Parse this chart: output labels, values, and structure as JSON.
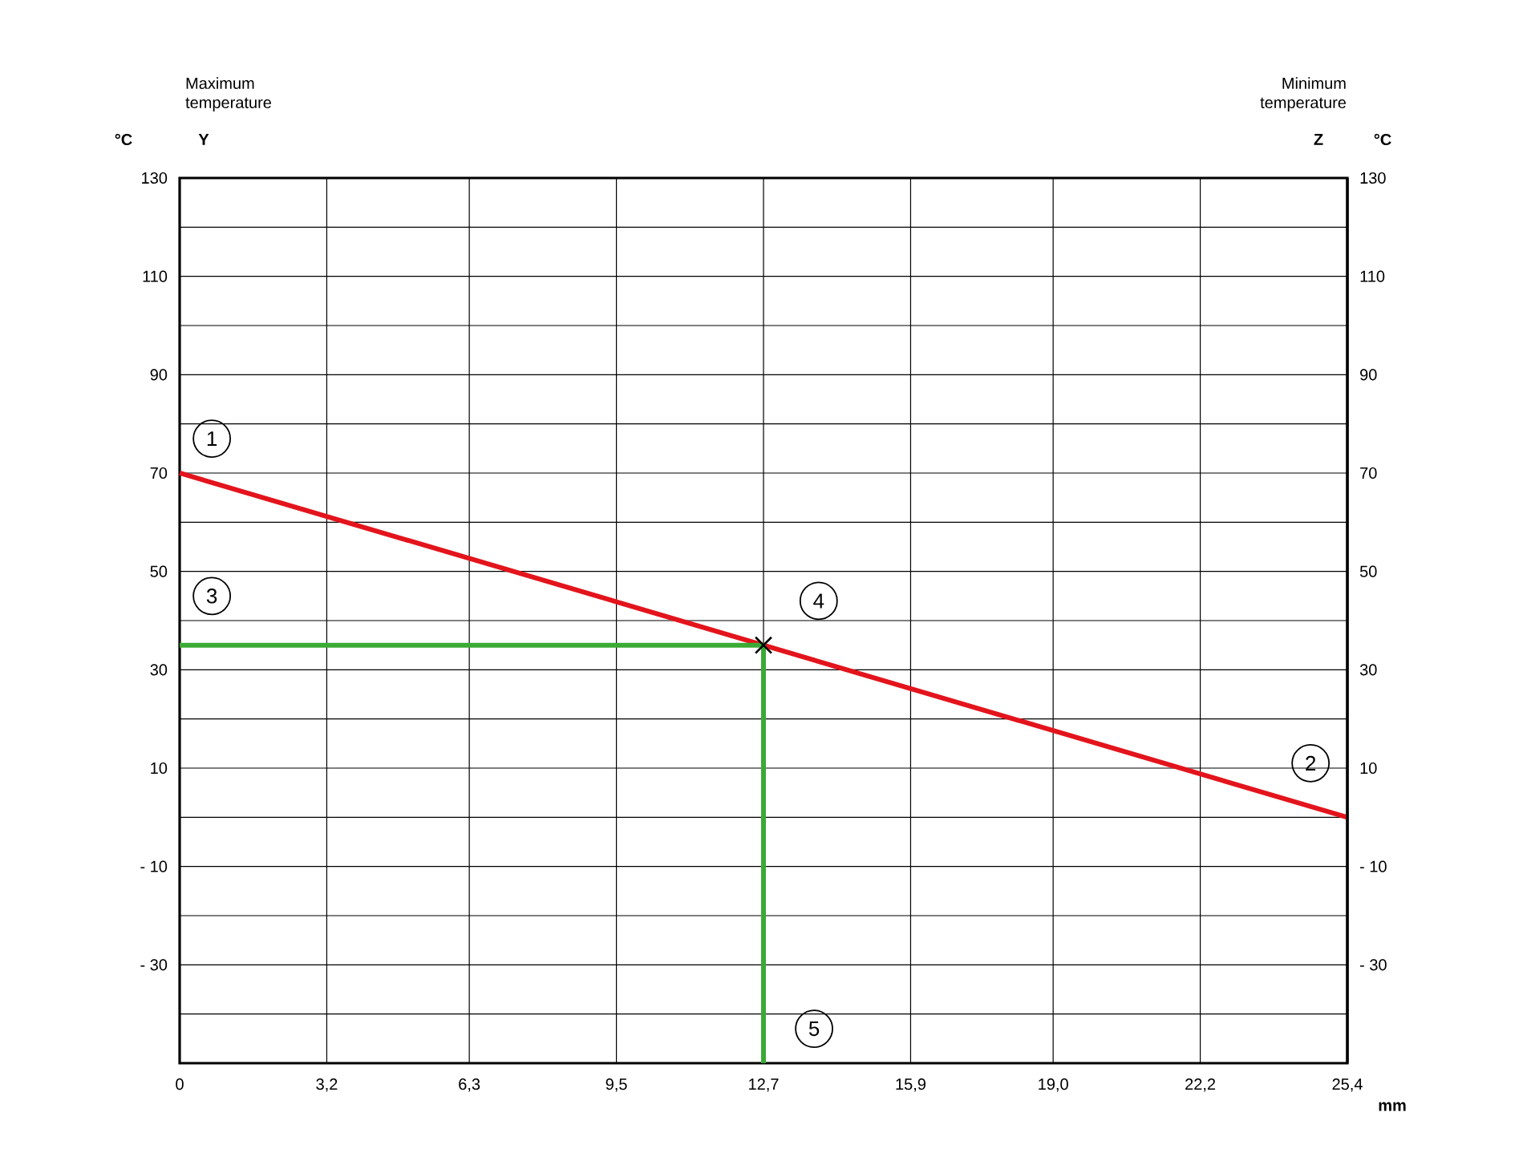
{
  "chart_data": {
    "type": "line",
    "xlabel": "mm",
    "ylabel": "°C",
    "y2label": "°C",
    "xlim": [
      0,
      25.4
    ],
    "ylim": [
      -50,
      130
    ],
    "y2lim": [
      -50,
      130
    ],
    "xticks": [
      0,
      {
        "value": 3.2,
        "label": "3,2"
      },
      {
        "value": 6.3,
        "label": "6,3"
      },
      {
        "value": 9.5,
        "label": "9,5"
      },
      {
        "value": 12.7,
        "label": "12,7"
      },
      {
        "value": 15.9,
        "label": "15,9"
      },
      {
        "value": 19.0,
        "label": "19,0"
      },
      {
        "value": 22.2,
        "label": "22,2"
      },
      {
        "value": 25.4,
        "label": "25,4"
      }
    ],
    "yticks": [
      {
        "value": -50,
        "label": null
      },
      {
        "value": -40,
        "label": null
      },
      {
        "value": -30,
        "label": "- 30"
      },
      {
        "value": -20,
        "label": null
      },
      {
        "value": -10,
        "label": "- 10"
      },
      {
        "value": 0,
        "label": null
      },
      10,
      {
        "value": 20,
        "label": null
      },
      30,
      {
        "value": 40,
        "label": null
      },
      50,
      {
        "value": 60,
        "label": null
      },
      70,
      {
        "value": 80,
        "label": null
      },
      90,
      {
        "value": 100,
        "label": null
      },
      110,
      {
        "value": 120,
        "label": null
      },
      130
    ],
    "y2ticks": [
      {
        "value": -50,
        "label": null
      },
      {
        "value": -40,
        "label": null
      },
      {
        "value": -30,
        "label": "- 30"
      },
      {
        "value": -20,
        "label": null
      },
      {
        "value": -10,
        "label": "- 10"
      },
      {
        "value": 0,
        "label": null
      },
      10,
      {
        "value": 20,
        "label": null
      },
      30,
      {
        "value": 40,
        "label": null
      },
      50,
      {
        "value": 60,
        "label": null
      },
      70,
      {
        "value": 80,
        "label": null
      },
      90,
      {
        "value": 100,
        "label": null
      },
      110,
      {
        "value": 120,
        "label": null
      },
      130
    ],
    "grid": true,
    "series": [
      {
        "color": "#e3141c",
        "x": [
          0,
          25.4
        ],
        "values": [
          70,
          0
        ]
      },
      {
        "color": "#3aaa35",
        "x": [
          0,
          12.7,
          12.7
        ],
        "values": [
          35,
          35,
          -50
        ]
      },
      {
        "type": "scatter",
        "marker": "cross",
        "color": "#000000",
        "x": [
          12.7
        ],
        "values": [
          35
        ]
      }
    ],
    "annotations": [
      "Maximum temperature",
      "Y",
      "Minimum temperature",
      "Z",
      {
        "text": "1",
        "x": 0.7,
        "y": 77
      },
      {
        "text": "2",
        "x": 24.6,
        "y": 11
      },
      {
        "text": "3",
        "x": 0.7,
        "y": 45
      },
      {
        "text": "4",
        "x": 13.9,
        "y": 44
      },
      {
        "text": "5",
        "x": 13.8,
        "y": -43
      }
    ]
  }
}
